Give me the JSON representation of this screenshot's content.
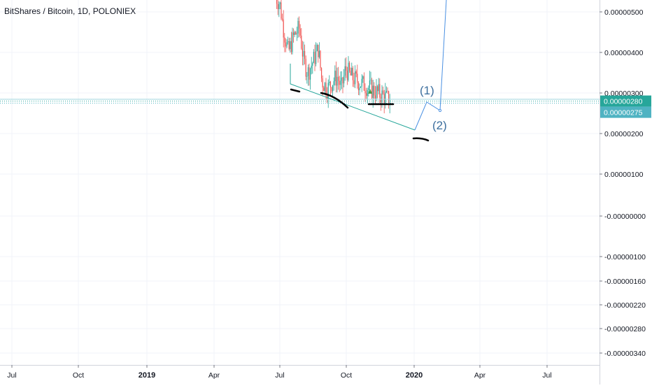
{
  "header": {
    "title": "BitShares / Bitcoin, 1D, POLONIEX"
  },
  "chart_data": {
    "type": "candlestick",
    "title": "BitShares / Bitcoin, 1D, POLONIEX",
    "symbol": "BitShares / Bitcoin",
    "interval": "1D",
    "exchange": "POLONIEX",
    "y_ticks": [
      "0.00000500",
      "0.00000400",
      "0.00000300",
      "0.00000200",
      "0.00000100",
      "-0.00000000",
      "-0.00000100",
      "-0.00000160",
      "-0.00000220",
      "-0.00000280",
      "-0.00000340"
    ],
    "x_ticks": [
      {
        "label": "Jul",
        "bold": false
      },
      {
        "label": "Oct",
        "bold": false
      },
      {
        "label": "2019",
        "bold": true
      },
      {
        "label": "Apr",
        "bold": false
      },
      {
        "label": "Jul",
        "bold": false
      },
      {
        "label": "Oct",
        "bold": false
      },
      {
        "label": "2020",
        "bold": true
      },
      {
        "label": "Apr",
        "bold": false
      },
      {
        "label": "Jul",
        "bold": false
      }
    ],
    "price_badges": [
      {
        "label": "0.00000280",
        "value": 2.8e-06,
        "color": "#26a69a"
      },
      {
        "label": "0.00000275",
        "value": 2.75e-06,
        "color": "#4fb3c2"
      }
    ],
    "annotations": [
      "(1)",
      "(2)"
    ],
    "colors": {
      "up": "#26a69a",
      "down": "#ef5350",
      "projection": "#4a90e2",
      "trendline": "#26a69a"
    }
  }
}
